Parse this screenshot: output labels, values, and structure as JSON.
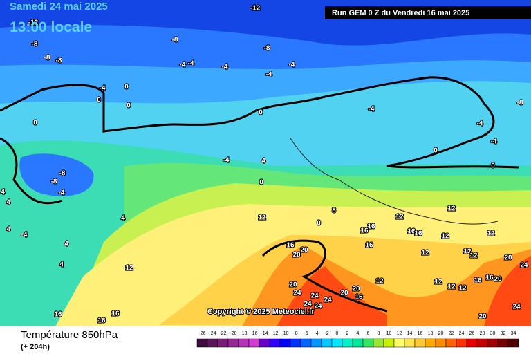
{
  "header": {
    "title": "Samedi 24 mai 2025",
    "time": "13:00 locale",
    "run": "Run GEM 0 Z du Vendredi 16 mai 2025"
  },
  "copyright": "Copyright © 2025 Meteociel.fr",
  "footer": {
    "parameter": "Température 850hPa",
    "lead": "(+ 204h)"
  },
  "legend": {
    "labels": [
      -26,
      -24,
      -22,
      -20,
      -18,
      -16,
      -14,
      -12,
      -10,
      -8,
      -6,
      -4,
      -2,
      0,
      2,
      4,
      6,
      8,
      10,
      12,
      14,
      16,
      18,
      20,
      22,
      24,
      26,
      28,
      30,
      32,
      34
    ],
    "colors": [
      "#3c0a3c",
      "#5a145a",
      "#781e78",
      "#962896",
      "#b432b4",
      "#d23cd2",
      "#6400c8",
      "#3200ff",
      "#0000ff",
      "#0032ff",
      "#0064ff",
      "#0096ff",
      "#00c8ff",
      "#00e6ff",
      "#00f0c8",
      "#00e696",
      "#32e664",
      "#96e632",
      "#c8f000",
      "#ffff64",
      "#ffe650",
      "#ffc832",
      "#ffaa00",
      "#ff8c00",
      "#ff6400",
      "#ff3200",
      "#e60000",
      "#c80000",
      "#a00000",
      "#780000",
      "#500000"
    ]
  },
  "contour_labels": [
    -12,
    -12,
    -8,
    -8,
    -8,
    -8,
    -8,
    -8,
    -4,
    -4,
    -4,
    -4,
    -4,
    -4,
    0,
    0,
    0,
    0,
    0,
    -4,
    -4,
    -4,
    0,
    0,
    -4,
    4,
    -8,
    -8,
    -4,
    0,
    4,
    4,
    4,
    4,
    -4,
    4,
    4,
    12,
    8,
    12,
    12,
    16,
    16,
    16,
    16,
    12,
    12,
    16,
    20,
    20,
    16,
    12,
    12,
    12,
    20,
    24,
    12,
    20,
    24,
    20,
    20,
    16,
    24,
    24,
    24,
    24,
    12,
    12,
    12,
    12,
    16,
    16,
    20,
    24,
    16,
    16,
    16,
    20,
    0
  ]
}
